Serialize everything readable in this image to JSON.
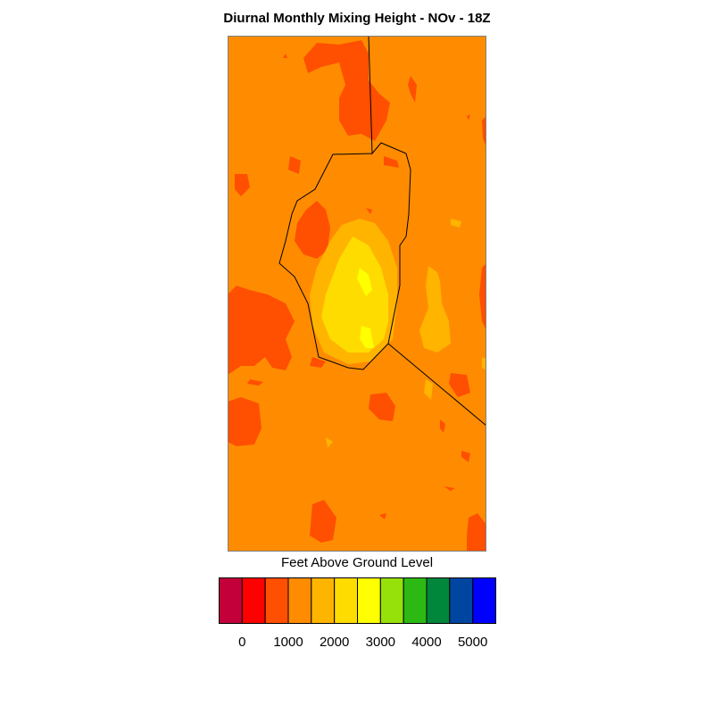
{
  "title": "Diurnal Monthly Mixing Height - NOv - 18Z",
  "colorbar": {
    "label": "Feet Above Ground Level",
    "colors": [
      "#c4003a",
      "#ff0000",
      "#ff4f00",
      "#ff8c00",
      "#ffb400",
      "#ffdc00",
      "#ffff00",
      "#96e10a",
      "#2db914",
      "#00873c",
      "#0046a0",
      "#0000ff"
    ],
    "ticks": [
      "0",
      "1000",
      "2000",
      "3000",
      "4000",
      "5000"
    ]
  },
  "map": {
    "background_color": "#ff8c00",
    "boundary_color": "#000000"
  }
}
